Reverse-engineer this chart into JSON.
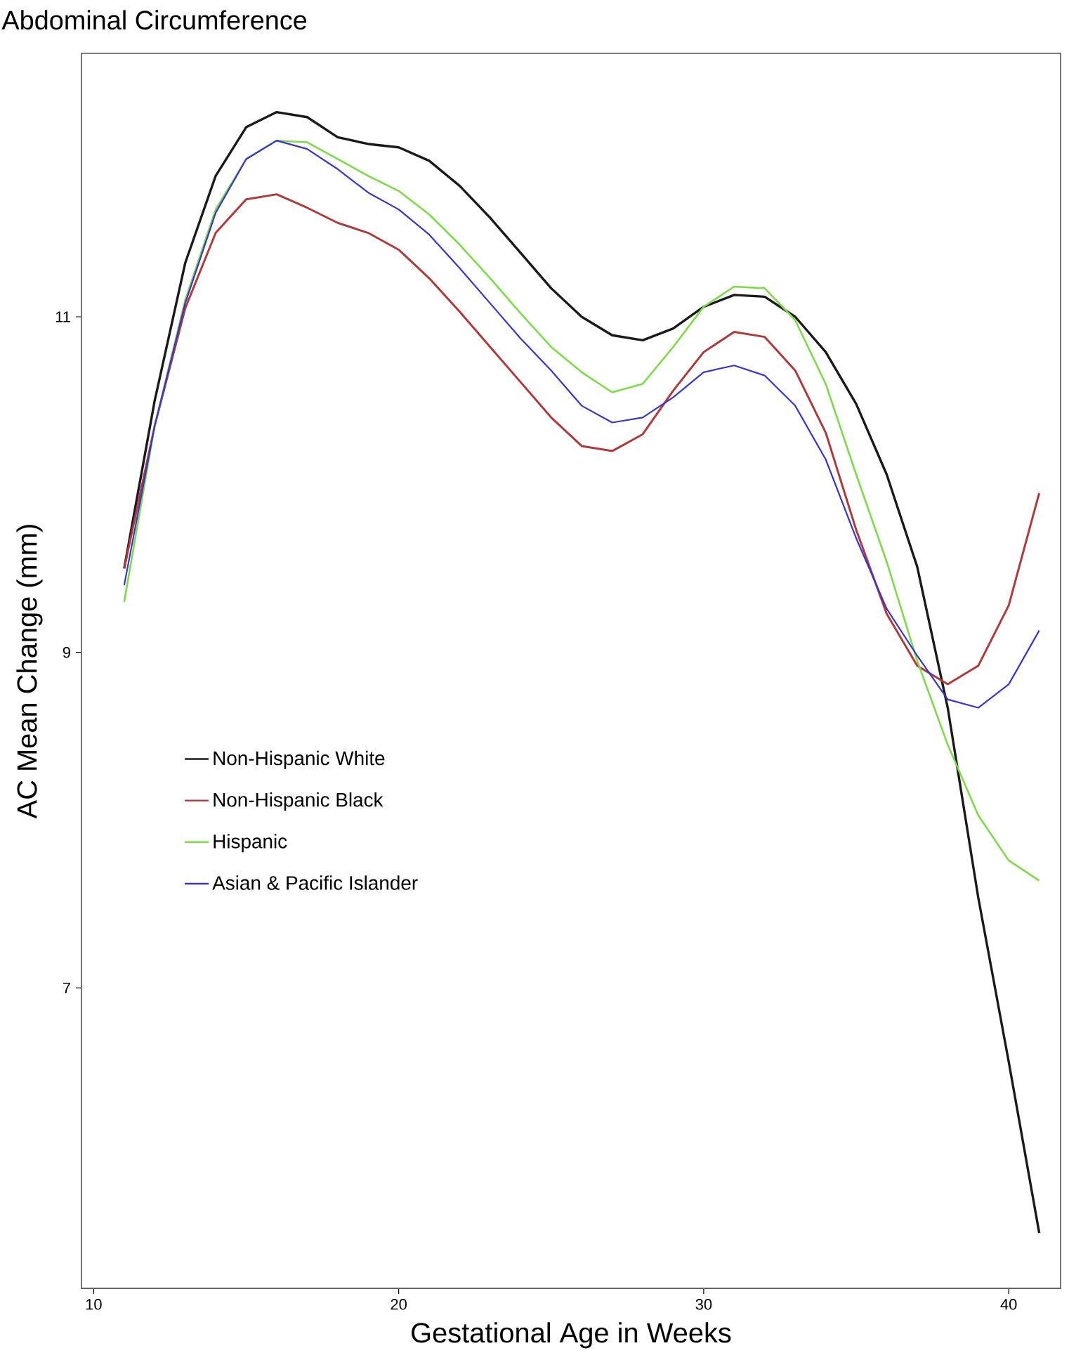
{
  "chart_data": {
    "type": "line",
    "title": "Abdominal Circumference",
    "xlabel": "Gestational Age in Weeks",
    "ylabel": "AC Mean Change (mm)",
    "x": [
      11,
      12,
      13,
      14,
      15,
      16,
      17,
      18,
      19,
      20,
      21,
      22,
      23,
      24,
      25,
      26,
      27,
      28,
      29,
      30,
      31,
      32,
      33,
      34,
      35,
      36,
      37,
      38,
      39,
      40,
      41
    ],
    "series": [
      {
        "name": "Non-Hispanic White",
        "color": "#1a1a1a",
        "values": [
          9.5,
          10.5,
          11.32,
          11.84,
          12.13,
          12.22,
          12.19,
          12.07,
          12.03,
          12.01,
          11.93,
          11.78,
          11.59,
          11.38,
          11.17,
          11.0,
          10.89,
          10.86,
          10.93,
          11.06,
          11.13,
          11.12,
          11.0,
          10.79,
          10.48,
          10.06,
          9.51,
          8.67,
          7.54,
          6.56,
          5.54
        ]
      },
      {
        "name": "Non-Hispanic Black",
        "color": "#b03a3a",
        "values": [
          9.5,
          10.35,
          11.05,
          11.5,
          11.7,
          11.73,
          11.65,
          11.56,
          11.5,
          11.4,
          11.23,
          11.03,
          10.82,
          10.61,
          10.4,
          10.23,
          10.2,
          10.3,
          10.56,
          10.79,
          10.91,
          10.88,
          10.68,
          10.31,
          9.73,
          9.23,
          8.92,
          8.81,
          8.92,
          9.28,
          9.95
        ]
      },
      {
        "name": "Hispanic",
        "color": "#7ddb4a",
        "values": [
          9.3,
          10.35,
          11.1,
          11.64,
          11.94,
          12.05,
          12.04,
          11.94,
          11.84,
          11.75,
          11.61,
          11.43,
          11.23,
          11.02,
          10.82,
          10.67,
          10.55,
          10.6,
          10.82,
          11.06,
          11.18,
          11.17,
          10.98,
          10.6,
          10.06,
          9.54,
          8.95,
          8.45,
          8.03,
          7.76,
          7.64
        ]
      },
      {
        "name": "Asian & Pacific Islander",
        "color": "#3a35c8",
        "values": [
          9.4,
          10.35,
          11.08,
          11.62,
          11.94,
          12.05,
          12.0,
          11.88,
          11.74,
          11.64,
          11.49,
          11.29,
          11.08,
          10.87,
          10.68,
          10.47,
          10.37,
          10.4,
          10.52,
          10.67,
          10.71,
          10.65,
          10.47,
          10.15,
          9.68,
          9.26,
          8.98,
          8.72,
          8.67,
          8.81,
          9.13
        ]
      }
    ],
    "xlim": [
      9.6,
      41.7
    ],
    "ylim": [
      5.21,
      12.57
    ],
    "xticks": [
      10,
      20,
      30,
      40
    ],
    "yticks": [
      7,
      9,
      11
    ],
    "grid": false,
    "legend": "left",
    "marker": "none",
    "line_style": "solid"
  }
}
